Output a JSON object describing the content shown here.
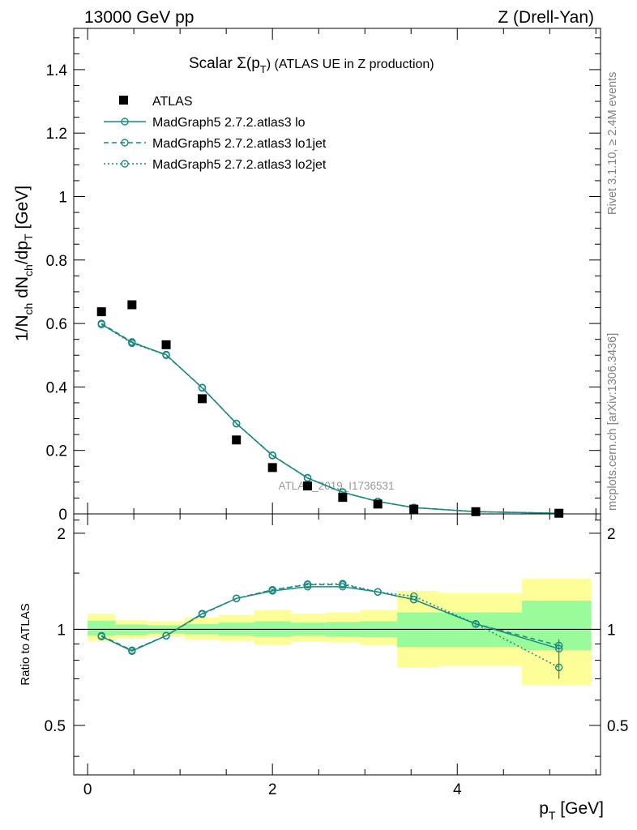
{
  "header": {
    "left": "13000 GeV pp",
    "right": "Z (Drell-Yan)"
  },
  "side_labels": {
    "rivet": "Rivet 3.1.10, ≥ 2.4M events",
    "mcplots": "mcplots.cern.ch [arXiv:1306.3436]"
  },
  "chart_data": [
    {
      "type": "scatter",
      "title": "Scalar Σ(pT) (ATLAS UE in Z production)",
      "title_main": "Scalar Σ(p",
      "title_sub": "T",
      "title_end": ") (ATLAS UE in Z production)",
      "ylabel": "1/N_ch dN_ch/dp_T [GeV]",
      "xlim": [
        -0.15,
        5.55
      ],
      "ylim": [
        0,
        1.53
      ],
      "yticks": [
        0,
        0.2,
        0.4,
        0.6,
        0.8,
        1,
        1.2,
        1.4
      ],
      "ytick_labels": [
        "0",
        "0.2",
        "0.4",
        "0.6",
        "0.8",
        "1",
        "1.2",
        "1.4"
      ],
      "watermark": "ATLAS_2019_I1736531",
      "x": [
        0.15,
        0.48,
        0.85,
        1.24,
        1.61,
        2.0,
        2.38,
        2.76,
        3.14,
        3.53,
        4.2,
        5.1
      ],
      "series": [
        {
          "name": "ATLAS",
          "style": "data",
          "values": [
            0.637,
            0.659,
            0.533,
            0.363,
            0.233,
            0.146,
            0.088,
            0.052,
            0.031,
            0.015,
            0.007,
            0.002
          ]
        },
        {
          "name": "MadGraph5 2.7.2.atlas3 lo",
          "style": "solid",
          "values": [
            0.598,
            0.54,
            0.502,
            0.397,
            0.285,
            0.184,
            0.113,
            0.068,
            0.039,
            0.02,
            0.007,
            0.002
          ]
        },
        {
          "name": "MadGraph5 2.7.2.atlas3 lo1jet",
          "style": "dashed",
          "values": [
            0.6,
            0.542,
            0.5,
            0.398,
            0.285,
            0.185,
            0.113,
            0.068,
            0.039,
            0.02,
            0.007,
            0.002
          ]
        },
        {
          "name": "MadGraph5 2.7.2.atlas3 lo2jet",
          "style": "dotted",
          "values": [
            0.597,
            0.538,
            0.501,
            0.398,
            0.284,
            0.184,
            0.114,
            0.069,
            0.039,
            0.02,
            0.007,
            0.002
          ]
        }
      ]
    },
    {
      "type": "line",
      "ylabel": "Ratio to ATLAS",
      "xlabel": "pT [GeV]",
      "xlabel_main": "p",
      "xlabel_sub": "T",
      "xlabel_end": " [GeV]",
      "xlim": [
        -0.15,
        5.55
      ],
      "ylim": [
        0.35,
        2.3
      ],
      "xticks": [
        0,
        2,
        4
      ],
      "xtick_labels": [
        "0",
        "2",
        "4"
      ],
      "yticks": [
        0.5,
        1,
        2
      ],
      "ytick_labels": [
        "0.5",
        "1",
        "2"
      ],
      "bins": [
        0.0,
        0.3,
        0.65,
        1.05,
        1.42,
        1.8,
        2.2,
        2.58,
        2.95,
        3.35,
        3.8,
        4.7,
        5.45
      ],
      "band_green": [
        [
          0.955,
          1.065
        ],
        [
          0.96,
          1.035
        ],
        [
          0.97,
          1.03
        ],
        [
          0.965,
          1.04
        ],
        [
          0.955,
          1.05
        ],
        [
          0.95,
          1.06
        ],
        [
          0.955,
          1.05
        ],
        [
          0.95,
          1.055
        ],
        [
          0.945,
          1.06
        ],
        [
          0.88,
          1.13
        ],
        [
          0.88,
          1.13
        ],
        [
          0.86,
          1.23
        ]
      ],
      "band_yellow": [
        [
          0.92,
          1.12
        ],
        [
          0.935,
          1.07
        ],
        [
          0.95,
          1.06
        ],
        [
          0.93,
          1.09
        ],
        [
          0.92,
          1.11
        ],
        [
          0.895,
          1.15
        ],
        [
          0.915,
          1.12
        ],
        [
          0.91,
          1.13
        ],
        [
          0.89,
          1.15
        ],
        [
          0.76,
          1.32
        ],
        [
          0.77,
          1.3
        ],
        [
          0.67,
          1.44
        ]
      ],
      "x": [
        0.15,
        0.48,
        0.85,
        1.24,
        1.61,
        2.0,
        2.38,
        2.76,
        3.14,
        3.53,
        4.2,
        5.1
      ],
      "series": [
        {
          "name": "MadGraph5 2.7.2.atlas3 lo",
          "style": "solid",
          "values": [
            0.95,
            0.855,
            0.955,
            1.12,
            1.25,
            1.32,
            1.36,
            1.36,
            1.31,
            1.24,
            1.04,
            0.87
          ]
        },
        {
          "name": "MadGraph5 2.7.2.atlas3 lo1jet",
          "style": "dashed",
          "values": [
            0.955,
            0.86,
            0.955,
            1.115,
            1.25,
            1.33,
            1.38,
            1.38,
            1.31,
            1.24,
            1.04,
            0.89
          ]
        },
        {
          "name": "MadGraph5 2.7.2.atlas3 lo2jet",
          "style": "dotted",
          "values": [
            0.95,
            0.855,
            0.955,
            1.12,
            1.25,
            1.33,
            1.385,
            1.39,
            1.31,
            1.27,
            1.04,
            0.76
          ]
        }
      ]
    }
  ],
  "colors": {
    "mc": "#1a8a82",
    "data": "#000000",
    "band_green": "#99fb99",
    "band_yellow": "#fefe99",
    "watermark": "#999999",
    "side_text": "#808080"
  }
}
